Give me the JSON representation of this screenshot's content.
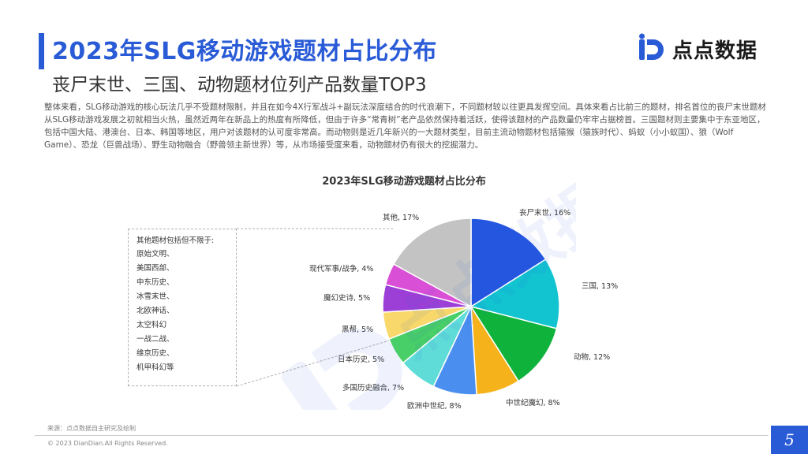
{
  "header": {
    "title": "2023年SLG移动游戏题材占比分布",
    "subtitle": "丧尸末世、三国、动物题材位列产品数量TOP3"
  },
  "brand": {
    "logo_text": "点点数据",
    "logo_icon": "diandian-logo-icon",
    "accent": "#2a5bd7"
  },
  "intro": "整体来看，SLG移动游戏的核心玩法几乎不受题材限制，并且在如今4X行军战斗+副玩法深度结合的时代浪潮下，不同题材较以往更具发挥空间。具体来看占比前三的题材，排名首位的丧尸末世题材从SLG移动游戏发展之初就相当火热，虽然近两年在新品上的热度有所降低，但由于许多“常青树”老产品依然保持着活跃，使得该题材的产品数量仍牢牢占据榜首。三国题材则主要集中于东亚地区，包括中国大陆、港澳台、日本、韩国等地区，用户对该题材的认可度非常高。而动物则是近几年新兴的一大题材类型，目前主流动物题材包括猿猴（猿族时代）、蚂蚁（小小蚁国）、狼（Wolf Game）、恐龙（巨兽战场）、野生动物融合（野兽领主新世界）等，从市场接受度来看，动物题材仍有很大的挖掘潜力。",
  "note": {
    "title": "其他题材包括但不限于:",
    "items": [
      "原始文明、",
      "美国西部、",
      "中东历史、",
      "冰雪末世、",
      "北欧神话、",
      "太空科幻",
      "一战二战、",
      "维京历史、",
      "机甲科幻等"
    ]
  },
  "chart_data": {
    "type": "pie",
    "title": "2023年SLG移动游戏题材占比分布",
    "slices": [
      {
        "label": "丧尸末世, 16%",
        "name": "丧尸末世",
        "value": 16,
        "color": "#2456e0"
      },
      {
        "label": "三国, 13%",
        "name": "三国",
        "value": 13,
        "color": "#12c3d0"
      },
      {
        "label": "动物, 12%",
        "name": "动物",
        "value": 12,
        "color": "#0fb33b"
      },
      {
        "label": "中世纪魔幻, 8%",
        "name": "中世纪魔幻",
        "value": 8,
        "color": "#f5b21a"
      },
      {
        "label": "欧洲中世纪, 8%",
        "name": "欧洲中世纪",
        "value": 8,
        "color": "#4a8ff0"
      },
      {
        "label": "多国历史融合, 7%",
        "name": "多国历史融合",
        "value": 7,
        "color": "#5fdcd7"
      },
      {
        "label": "日本历史, 5%",
        "name": "日本历史",
        "value": 5,
        "color": "#48cf67"
      },
      {
        "label": "黑帮, 5%",
        "name": "黑帮",
        "value": 5,
        "color": "#f8d86a"
      },
      {
        "label": "魔幻史诗, 5%",
        "name": "魔幻史诗",
        "value": 5,
        "color": "#9c3fd6"
      },
      {
        "label": "现代军事/战争, 4%",
        "name": "现代军事/战争",
        "value": 4,
        "color": "#d94fd6"
      },
      {
        "label": "其他, 17%",
        "name": "其他",
        "value": 17,
        "color": "#c3c3c3"
      }
    ]
  },
  "footer": {
    "source": "来源：点点数据自主研究及绘制",
    "copyright": "© 2023 DianDian.All Rights Reserved.",
    "page": "5"
  }
}
